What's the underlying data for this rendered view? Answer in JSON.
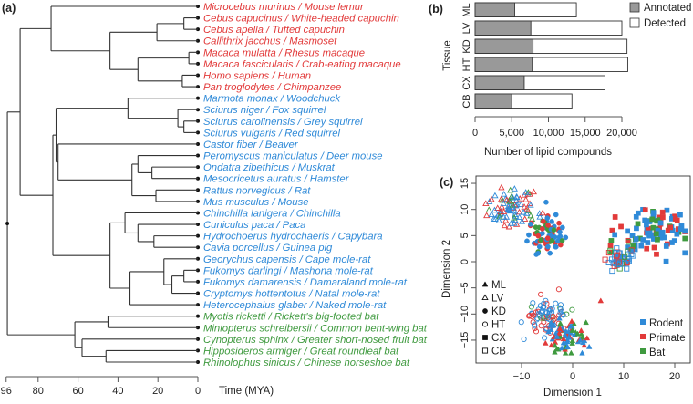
{
  "panel_labels": {
    "a": "(a)",
    "b": "(b)",
    "c": "(c)"
  },
  "colors": {
    "primate": "#e23a3a",
    "rodent": "#2f8ad8",
    "bat": "#3f9a3f",
    "annotated": "#999999",
    "detected": "#ffffff"
  },
  "tree": {
    "axis_label": "Time (MYA)",
    "ticks": [
      96,
      80,
      60,
      40,
      20,
      0
    ],
    "species": [
      {
        "name": "Microcebus murinus / Mouse lemur",
        "group": "primate"
      },
      {
        "name": "Cebus capucinus / White-headed capuchin",
        "group": "primate"
      },
      {
        "name": "Cebus apella / Tufted capuchin",
        "group": "primate"
      },
      {
        "name": "Callithrix jacchus / Masmoset",
        "group": "primate"
      },
      {
        "name": "Macaca mulatta / Rhesus macaque",
        "group": "primate"
      },
      {
        "name": "Macaca fascicularis / Crab-eating macaque",
        "group": "primate"
      },
      {
        "name": "Homo sapiens / Human",
        "group": "primate"
      },
      {
        "name": "Pan troglodytes / Chimpanzee",
        "group": "primate"
      },
      {
        "name": "Marmota monax / Woodchuck",
        "group": "rodent"
      },
      {
        "name": "Sciurus niger / Fox squirrel",
        "group": "rodent"
      },
      {
        "name": "Sciurus carolinensis / Grey squirrel",
        "group": "rodent"
      },
      {
        "name": "Sciurus vulgaris / Red squirrel",
        "group": "rodent"
      },
      {
        "name": "Castor fiber / Beaver",
        "group": "rodent"
      },
      {
        "name": "Peromyscus maniculatus / Deer mouse",
        "group": "rodent"
      },
      {
        "name": "Ondatra zibethicus / Muskrat",
        "group": "rodent"
      },
      {
        "name": "Mesocricetus auratus / Hamster",
        "group": "rodent"
      },
      {
        "name": "Rattus norvegicus / Rat",
        "group": "rodent"
      },
      {
        "name": "Mus musculus / Mouse",
        "group": "rodent"
      },
      {
        "name": "Chinchilla lanigera / Chinchilla",
        "group": "rodent"
      },
      {
        "name": "Cuniculus paca / Paca",
        "group": "rodent"
      },
      {
        "name": "Hydrochoerus hydrochaeris / Capybara",
        "group": "rodent"
      },
      {
        "name": "Cavia porcellus / Guinea pig",
        "group": "rodent"
      },
      {
        "name": "Georychus capensis / Cape mole-rat",
        "group": "rodent"
      },
      {
        "name": "Fukomys darlingi / Mashona mole-rat",
        "group": "rodent"
      },
      {
        "name": "Fukomys damarensis / Damaraland mole-rat",
        "group": "rodent"
      },
      {
        "name": "Cryptomys hottentotus / Natal mole-rat",
        "group": "rodent"
      },
      {
        "name": "Heterocephalus glaber / Naked mole-rat",
        "group": "rodent"
      },
      {
        "name": "Myotis ricketti / Rickett's big-footed bat",
        "group": "bat"
      },
      {
        "name": "Miniopterus schreibersii / Common bent-wing bat",
        "group": "bat"
      },
      {
        "name": "Cynopterus sphinx / Greater short-nosed fruit bat",
        "group": "bat"
      },
      {
        "name": "Hipposideros armiger / Great roundleaf bat",
        "group": "bat"
      },
      {
        "name": "Rhinolophus sinicus / Chinese horseshoe bat",
        "group": "bat"
      }
    ],
    "topology": {
      "age": 95.4,
      "children": [
        {
          "age": 89,
          "children": [
            {
              "age": 73.5,
              "children": [
                {
                  "leaf": 0
                },
                {
                  "age": 44,
                  "children": [
                    {
                      "age": 20.5,
                      "children": [
                        {
                          "age": 7,
                          "children": [
                            {
                              "leaf": 1
                            },
                            {
                              "leaf": 2
                            }
                          ]
                        },
                        {
                          "leaf": 3
                        }
                      ]
                    },
                    {
                      "age": 30,
                      "children": [
                        {
                          "age": 4.5,
                          "children": [
                            {
                              "leaf": 4
                            },
                            {
                              "leaf": 5
                            }
                          ]
                        },
                        {
                          "age": 7.8,
                          "children": [
                            {
                              "leaf": 6
                            },
                            {
                              "leaf": 7
                            }
                          ]
                        }
                      ]
                    }
                  ]
                }
              ]
            },
            {
              "age": 72.6,
              "children": [
                {
                  "age": 71,
                  "children": [
                    {
                      "age": 35,
                      "children": [
                        {
                          "leaf": 8
                        },
                        {
                          "age": 10,
                          "children": [
                            {
                              "leaf": 9
                            },
                            {
                              "age": 7,
                              "children": [
                                {
                                  "leaf": 10
                                },
                                {
                                  "leaf": 11
                                }
                              ]
                            }
                          ]
                        }
                      ]
                    },
                    {
                      "age": 70,
                      "children": [
                        {
                          "leaf": 12
                        },
                        {
                          "age": 33,
                          "children": [
                            {
                              "age": 30,
                              "children": [
                                {
                                  "leaf": 13
                                },
                                {
                                  "age": 23,
                                  "children": [
                                    {
                                      "leaf": 14
                                    },
                                    {
                                      "leaf": 15
                                    }
                                  ]
                                }
                              ]
                            },
                            {
                              "age": 21,
                              "children": [
                                {
                                  "leaf": 16
                                },
                                {
                                  "leaf": 17
                                }
                              ]
                            }
                          ]
                        }
                      ]
                    }
                  ]
                },
                {
                  "age": 44,
                  "children": [
                    {
                      "age": 36.5,
                      "children": [
                        {
                          "leaf": 18
                        },
                        {
                          "age": 30,
                          "children": [
                            {
                              "leaf": 19
                            },
                            {
                              "age": 22,
                              "children": [
                                {
                                  "leaf": 20
                                },
                                {
                                  "leaf": 21
                                }
                              ]
                            }
                          ]
                        }
                      ]
                    },
                    {
                      "age": 34,
                      "children": [
                        {
                          "age": 17,
                          "children": [
                            {
                              "leaf": 22
                            },
                            {
                              "age": 13,
                              "children": [
                                {
                                  "age": 7,
                                  "children": [
                                    {
                                      "leaf": 23
                                    },
                                    {
                                      "leaf": 24
                                    }
                                  ]
                                },
                                {
                                  "leaf": 25
                                }
                              ]
                            }
                          ]
                        },
                        {
                          "leaf": 26
                        }
                      ]
                    }
                  ]
                }
              ]
            }
          ]
        },
        {
          "age": 61.6,
          "children": [
            {
              "age": 45,
              "children": [
                {
                  "leaf": 27
                },
                {
                  "leaf": 28
                }
              ]
            },
            {
              "age": 58,
              "children": [
                {
                  "leaf": 29
                },
                {
                  "age": 46,
                  "children": [
                    {
                      "leaf": 30
                    },
                    {
                      "leaf": 31
                    }
                  ]
                }
              ]
            }
          ]
        }
      ]
    }
  },
  "chart_data": [
    {
      "type": "bar",
      "orientation": "horizontal",
      "title": "",
      "xlabel": "Number of lipid compounds",
      "ylabel": "Tissue",
      "categories": [
        "ML",
        "LV",
        "KD",
        "HT",
        "CX",
        "CB"
      ],
      "series": [
        {
          "name": "Annotated",
          "values": [
            5400,
            7600,
            7900,
            7800,
            6700,
            5000
          ]
        },
        {
          "name": "Detected",
          "values": [
            13800,
            20000,
            20700,
            20800,
            17700,
            13200
          ]
        }
      ],
      "xlim": [
        0,
        20000
      ],
      "xticks": [
        0,
        5000,
        10000,
        15000,
        20000
      ],
      "xtick_labels": [
        "0",
        "5,000",
        "10,000",
        "15,000",
        "20,000"
      ],
      "legend": [
        "Annotated",
        "Detected"
      ],
      "legend_position": "top-right"
    },
    {
      "type": "scatter",
      "xlabel": "Dimension 1",
      "ylabel": "Dimension 2",
      "xlim": [
        -18,
        24
      ],
      "ylim": [
        -18,
        16
      ],
      "xticks": [
        -10,
        0,
        10,
        20
      ],
      "xtick_labels": [
        "−10",
        "0",
        "10",
        "20"
      ],
      "yticks": [
        -15,
        -10,
        -5,
        0,
        5,
        10,
        15
      ],
      "ytick_labels": [
        "−15",
        "−10",
        "−5",
        "0",
        "5",
        "10",
        "15"
      ],
      "shape_legend": [
        {
          "label": "ML",
          "marker": "triangle-filled"
        },
        {
          "label": "LV",
          "marker": "triangle-open"
        },
        {
          "label": "KD",
          "marker": "circle-filled"
        },
        {
          "label": "HT",
          "marker": "circle-open"
        },
        {
          "label": "CX",
          "marker": "square-filled"
        },
        {
          "label": "CB",
          "marker": "square-open"
        }
      ],
      "color_legend": [
        {
          "label": "Rodent",
          "group": "rodent"
        },
        {
          "label": "Primate",
          "group": "primate"
        },
        {
          "label": "Bat",
          "group": "bat"
        }
      ],
      "clusters": [
        {
          "tissue": "LV",
          "marker": "triangle-open",
          "center": [
            -12,
            10.3
          ],
          "sd": [
            2.6,
            2.0
          ],
          "n": 90
        },
        {
          "tissue": "KD",
          "marker": "circle-filled",
          "center": [
            -4.8,
            5.3
          ],
          "sd": [
            1.9,
            1.6
          ],
          "n": 80
        },
        {
          "tissue": "CX",
          "marker": "square-filled",
          "center": [
            17,
            6.3
          ],
          "sd": [
            2.6,
            1.8
          ],
          "n": 100
        },
        {
          "tissue": "CB",
          "marker": "square-open",
          "center": [
            9.3,
            0.5
          ],
          "sd": [
            1.4,
            1.1
          ],
          "n": 55
        },
        {
          "tissue": "HT",
          "marker": "circle-open",
          "center": [
            -5,
            -10.5
          ],
          "sd": [
            2.0,
            1.7
          ],
          "n": 85
        },
        {
          "tissue": "ML",
          "marker": "triangle-filled",
          "center": [
            -1.5,
            -14.3
          ],
          "sd": [
            1.7,
            1.8
          ],
          "n": 85
        }
      ],
      "group_mix": {
        "rodent": 0.58,
        "primate": 0.28,
        "bat": 0.14
      }
    }
  ]
}
